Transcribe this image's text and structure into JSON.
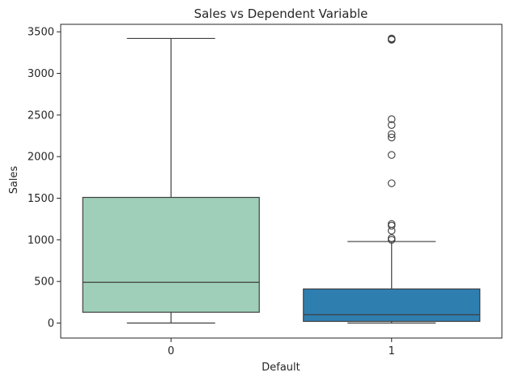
{
  "chart_data": {
    "type": "box",
    "title": "Sales vs Dependent Variable",
    "xlabel": "Default",
    "ylabel": "Sales",
    "categories": [
      "0",
      "1"
    ],
    "ylim": [
      -180,
      3590
    ],
    "yticks": [
      0,
      500,
      1000,
      1500,
      2000,
      2500,
      3000,
      3500
    ],
    "grid": false,
    "boxes": [
      {
        "category": "0",
        "whisker_low": 0,
        "q1": 130,
        "median": 490,
        "q3": 1510,
        "whisker_high": 3420,
        "color": "#9fcfb8",
        "outliers": []
      },
      {
        "category": "1",
        "whisker_low": 0,
        "q1": 20,
        "median": 100,
        "q3": 410,
        "whisker_high": 980,
        "color": "#2e7eb0",
        "outliers": [
          3420,
          3410,
          3405,
          2450,
          2380,
          2270,
          2230,
          2020,
          1680,
          1190,
          1170,
          1110,
          1020,
          1000
        ]
      }
    ],
    "colors": {
      "edge": "#3f3f3f",
      "text": "#262626"
    }
  }
}
